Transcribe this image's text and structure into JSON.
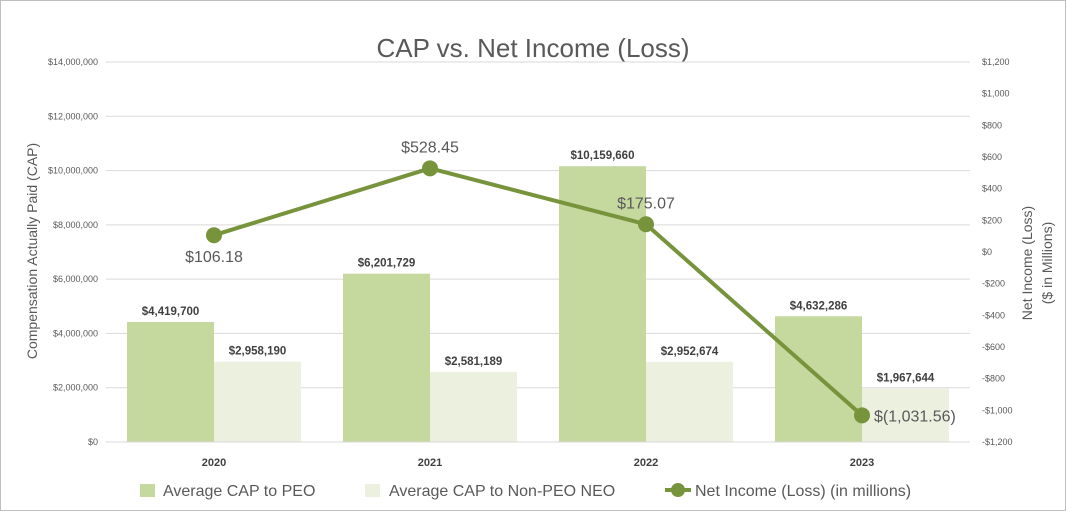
{
  "chart_data": {
    "type": "bar",
    "title": "CAP vs. Net Income (Loss)",
    "categories": [
      "2020",
      "2021",
      "2022",
      "2023"
    ],
    "ylabel": "Compensation Actually Paid (CAP)",
    "y2label_line1": "Net Income (Loss)",
    "y2label_line2": "($ in Millions)",
    "ylim": [
      0,
      14000000
    ],
    "y_ticks": [
      {
        "value": 0,
        "label": "$0"
      },
      {
        "value": 2000000,
        "label": "$2,000,000"
      },
      {
        "value": 4000000,
        "label": "$4,000,000"
      },
      {
        "value": 6000000,
        "label": "$6,000,000"
      },
      {
        "value": 8000000,
        "label": "$8,000,000"
      },
      {
        "value": 10000000,
        "label": "$10,000,000"
      },
      {
        "value": 12000000,
        "label": "$12,000,000"
      },
      {
        "value": 14000000,
        "label": "$14,000,000"
      }
    ],
    "y2lim": [
      -1200,
      1200
    ],
    "y2_ticks": [
      {
        "value": 1200,
        "label": "$1,200"
      },
      {
        "value": 1000,
        "label": "$1,000"
      },
      {
        "value": 800,
        "label": "$800"
      },
      {
        "value": 600,
        "label": "$600"
      },
      {
        "value": 400,
        "label": "$400"
      },
      {
        "value": 200,
        "label": "$200"
      },
      {
        "value": 0,
        "label": "$0"
      },
      {
        "value": -200,
        "label": "-$200"
      },
      {
        "value": -400,
        "label": "-$400"
      },
      {
        "value": -600,
        "label": "-$600"
      },
      {
        "value": -800,
        "label": "-$800"
      },
      {
        "value": -1000,
        "label": "-$1,000"
      },
      {
        "value": -1200,
        "label": "-$1,200"
      }
    ],
    "grid": true,
    "legend_position": "bottom",
    "series": [
      {
        "name": "Average CAP to PEO",
        "kind": "bar",
        "axis": "left",
        "color": "#c5d89e",
        "values": [
          4419700,
          6201729,
          10159660,
          4632286
        ],
        "labels": [
          "$4,419,700",
          "$6,201,729",
          "$10,159,660",
          "$4,632,286"
        ]
      },
      {
        "name": "Average CAP to Non-PEO NEO",
        "kind": "bar",
        "axis": "left",
        "color": "#ebf0df",
        "values": [
          2958190,
          2581189,
          2952674,
          1967644
        ],
        "labels": [
          "$2,958,190",
          "$2,581,189",
          "$2,952,674",
          "$1,967,644"
        ]
      },
      {
        "name": "Net Income (Loss) (in millions)",
        "kind": "line",
        "axis": "right",
        "color": "#77933c",
        "values": [
          106.18,
          528.45,
          175.07,
          -1031.56
        ],
        "labels": [
          "$106.18",
          "$528.45",
          "$175.07",
          "$(1,031.56)"
        ]
      }
    ]
  }
}
